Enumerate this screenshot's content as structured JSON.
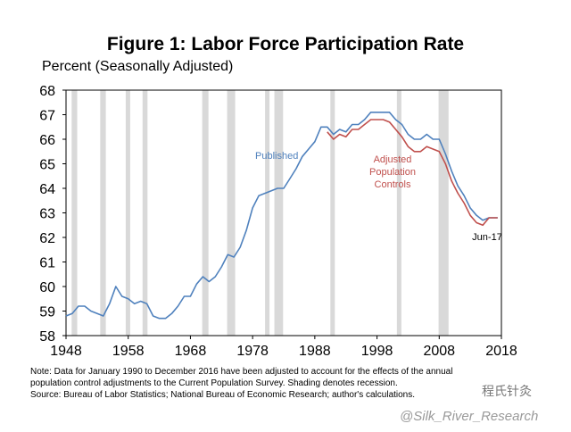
{
  "chart_data": {
    "type": "line",
    "title": "Figure 1: Labor Force Participation Rate",
    "ylabel": "Percent (Seasonally Adjusted)",
    "xlabel": "",
    "xlim": [
      1948,
      2018
    ],
    "ylim": [
      58,
      68
    ],
    "x_ticks": [
      "1948",
      "1958",
      "1968",
      "1978",
      "1988",
      "1998",
      "2008",
      "2018"
    ],
    "y_ticks": [
      "58",
      "59",
      "60",
      "61",
      "62",
      "63",
      "64",
      "65",
      "66",
      "67",
      "68"
    ],
    "recessions": [
      [
        1948.9,
        1949.8
      ],
      [
        1953.5,
        1954.4
      ],
      [
        1957.6,
        1958.3
      ],
      [
        1960.3,
        1961.1
      ],
      [
        1969.9,
        1970.9
      ],
      [
        1973.9,
        1975.2
      ],
      [
        1980.0,
        1980.5
      ],
      [
        1981.5,
        1982.9
      ],
      [
        1990.5,
        1991.2
      ],
      [
        2001.2,
        2001.9
      ],
      [
        2007.9,
        2009.5
      ]
    ],
    "series": [
      {
        "name": "Published",
        "color": "#4f81bd",
        "x": [
          1948,
          1949,
          1950,
          1951,
          1952,
          1953,
          1954,
          1955,
          1956,
          1957,
          1958,
          1959,
          1960,
          1961,
          1962,
          1963,
          1964,
          1965,
          1966,
          1967,
          1968,
          1969,
          1970,
          1971,
          1972,
          1973,
          1974,
          1975,
          1976,
          1977,
          1978,
          1979,
          1980,
          1981,
          1982,
          1983,
          1984,
          1985,
          1986,
          1987,
          1988,
          1989,
          1990,
          1991,
          1992,
          1993,
          1994,
          1995,
          1996,
          1997,
          1998,
          1999,
          2000,
          2001,
          2002,
          2003,
          2004,
          2005,
          2006,
          2007,
          2008,
          2009,
          2010,
          2011,
          2012,
          2013,
          2014,
          2015,
          2016,
          2017.4
        ],
        "values": [
          58.8,
          58.9,
          59.2,
          59.2,
          59.0,
          58.9,
          58.8,
          59.3,
          60.0,
          59.6,
          59.5,
          59.3,
          59.4,
          59.3,
          58.8,
          58.7,
          58.7,
          58.9,
          59.2,
          59.6,
          59.6,
          60.1,
          60.4,
          60.2,
          60.4,
          60.8,
          61.3,
          61.2,
          61.6,
          62.3,
          63.2,
          63.7,
          63.8,
          63.9,
          64.0,
          64.0,
          64.4,
          64.8,
          65.3,
          65.6,
          65.9,
          66.5,
          66.5,
          66.2,
          66.4,
          66.3,
          66.6,
          66.6,
          66.8,
          67.1,
          67.1,
          67.1,
          67.1,
          66.8,
          66.6,
          66.2,
          66.0,
          66.0,
          66.2,
          66.0,
          66.0,
          65.4,
          64.7,
          64.1,
          63.7,
          63.2,
          62.9,
          62.7,
          62.8,
          62.8
        ]
      },
      {
        "name": "Adjusted Population Controls",
        "color": "#c0504d",
        "x": [
          1990,
          1991,
          1992,
          1993,
          1994,
          1995,
          1996,
          1997,
          1998,
          1999,
          2000,
          2001,
          2002,
          2003,
          2004,
          2005,
          2006,
          2007,
          2008,
          2009,
          2010,
          2011,
          2012,
          2013,
          2014,
          2015,
          2016,
          2017.4
        ],
        "values": [
          66.3,
          66.0,
          66.2,
          66.1,
          66.4,
          66.4,
          66.6,
          66.8,
          66.8,
          66.8,
          66.7,
          66.4,
          66.1,
          65.7,
          65.5,
          65.5,
          65.7,
          65.6,
          65.5,
          65.0,
          64.3,
          63.8,
          63.4,
          62.9,
          62.6,
          62.5,
          62.8,
          62.8
        ]
      }
    ],
    "annotations": [
      "Published",
      "Adjusted",
      "Population",
      "Controls",
      "Jun-17"
    ]
  },
  "notes": [
    "Note: Data for January 1990 to December 2016 have been adjusted to account for the effects of the annual",
    "population control adjustments to the Current Population Survey. Shading denotes recession.",
    "Source: Bureau of Labor Statistics; National Bureau of Economic Research; author's calculations."
  ],
  "watermark": {
    "line1": "程氏针灸",
    "line2": "@Silk_River_Research"
  }
}
